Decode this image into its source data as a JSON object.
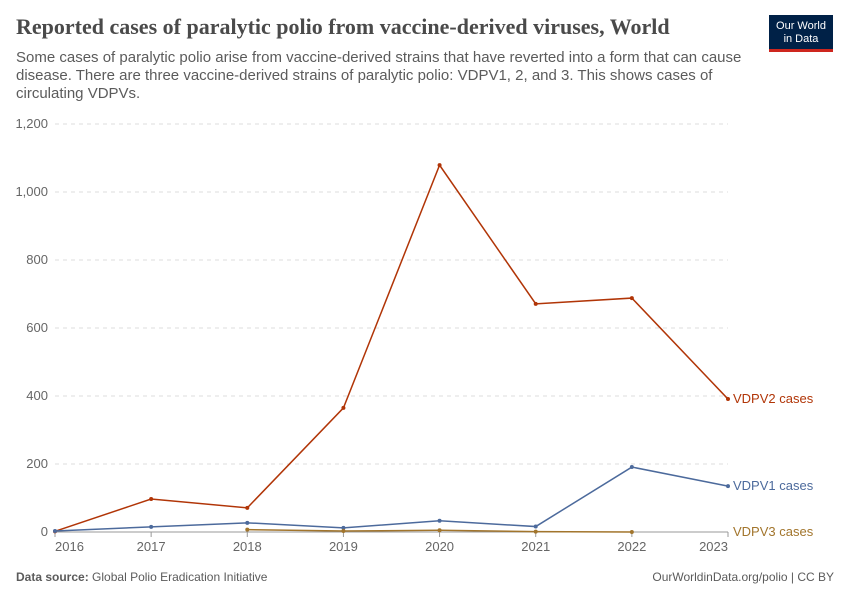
{
  "chart_data": {
    "type": "line",
    "title": "Reported cases of paralytic polio from vaccine-derived viruses, World",
    "subtitle": "Some cases of paralytic polio arise from vaccine-derived strains that have reverted into a form that can cause disease. There are three vaccine-derived strains of paralytic polio: VDPV1, 2, and 3. This shows cases of circulating VDPVs.",
    "x": [
      2016,
      2017,
      2018,
      2019,
      2020,
      2021,
      2022,
      2023
    ],
    "series": [
      {
        "name": "VDPV2 cases",
        "color": "#b13507",
        "values": [
          2,
          97,
          71,
          365,
          1079,
          671,
          688,
          391
        ]
      },
      {
        "name": "VDPV1 cases",
        "color": "#4c6a9c",
        "values": [
          3,
          15,
          27,
          12,
          33,
          16,
          191,
          135
        ]
      },
      {
        "name": "VDPV3 cases",
        "color": "#a2752c",
        "values": [
          null,
          null,
          7,
          3,
          5,
          1,
          0,
          null
        ]
      }
    ],
    "xlim": [
      2016,
      2023
    ],
    "xticks": [
      2016,
      2017,
      2018,
      2019,
      2020,
      2021,
      2022,
      2023
    ],
    "ylim": [
      0,
      1200
    ],
    "yticks": [
      0,
      200,
      400,
      600,
      800,
      {
        "value": 1000,
        "label": "1,000"
      },
      {
        "value": 1200,
        "label": "1,200"
      }
    ],
    "grid": true
  },
  "logo": [
    "Our World",
    "in Data"
  ],
  "footer": {
    "source_label": "Data source:",
    "source": "Global Polio Eradication Initiative",
    "url": "OurWorldinData.org/polio | CC BY"
  }
}
